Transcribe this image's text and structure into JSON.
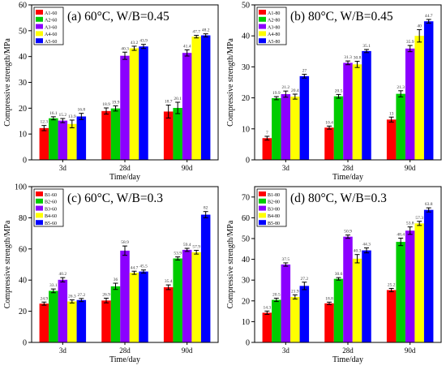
{
  "colors": [
    "#ff0000",
    "#00cc00",
    "#8b00ff",
    "#ffff00",
    "#0000ff"
  ],
  "chart_data": [
    {
      "type": "bar",
      "title": "(a) 60°C, W/B=0.45",
      "xlabel": "Time/day",
      "ylabel": "Compressive strength/MPa",
      "ylim": [
        0,
        60
      ],
      "yticks": [
        0,
        10,
        20,
        30,
        40,
        50,
        60
      ],
      "categories": [
        "3d",
        "28d",
        "90d"
      ],
      "legend_position": "top-left",
      "series": [
        {
          "name": "A1-60",
          "values": [
            12.3,
            18.9,
            18.7
          ],
          "labels": [
            "12.3",
            "18.9",
            "18.7"
          ],
          "errors": [
            1.0,
            1.2,
            2.5
          ]
        },
        {
          "name": "A2-60",
          "values": [
            16.1,
            19.9,
            20.1
          ],
          "labels": [
            "16.1",
            "19.9",
            "20.1"
          ],
          "errors": [
            0.6,
            1.0,
            2.2
          ]
        },
        {
          "name": "A3-60",
          "values": [
            15.2,
            40.3,
            41.4
          ],
          "labels": [
            "15.2",
            "40.3",
            "41.4"
          ],
          "errors": [
            0.8,
            1.4,
            1.2
          ]
        },
        {
          "name": "A4-60",
          "values": [
            13.9,
            43.2,
            47.7
          ],
          "labels": [
            "13.9",
            "43.2",
            "47.7"
          ],
          "errors": [
            1.5,
            0.8,
            0.5
          ]
        },
        {
          "name": "A5-60",
          "values": [
            16.8,
            43.9,
            48.2
          ],
          "labels": [
            "16.8",
            "43.9",
            "48.2"
          ],
          "errors": [
            1.2,
            0.8,
            0.6
          ]
        }
      ]
    },
    {
      "type": "bar",
      "title": "(b) 80°C, W/B=0.45",
      "xlabel": "Time/day",
      "ylabel": "Compressive strength/MPa",
      "ylim": [
        0,
        50
      ],
      "yticks": [
        0,
        10,
        20,
        30,
        40,
        50
      ],
      "categories": [
        "3d",
        "28d",
        "90d"
      ],
      "legend_position": "top-left",
      "series": [
        {
          "name": "A1-80",
          "values": [
            7,
            10.4,
            13
          ],
          "labels": [
            "7",
            "10.4",
            "13"
          ],
          "errors": [
            0.6,
            0.5,
            0.8
          ]
        },
        {
          "name": "A2-80",
          "values": [
            19.9,
            20.5,
            21.3
          ],
          "labels": [
            "19.9",
            "20.5",
            "21.3"
          ],
          "errors": [
            0.5,
            0.6,
            1.0
          ]
        },
        {
          "name": "A3-80",
          "values": [
            21.2,
            31.3,
            35.9
          ],
          "labels": [
            "21.2",
            "31.3",
            "35.9"
          ],
          "errors": [
            1.0,
            0.6,
            1.0
          ]
        },
        {
          "name": "A4-80",
          "values": [
            20.4,
            30.8,
            40
          ],
          "labels": [
            "20.4",
            "30.8",
            "40"
          ],
          "errors": [
            0.8,
            1.0,
            2.0
          ]
        },
        {
          "name": "A5-80",
          "values": [
            27,
            35.1,
            44.7
          ],
          "labels": [
            "27",
            "35.1",
            "44.7"
          ],
          "errors": [
            0.6,
            0.5,
            0.6
          ]
        }
      ]
    },
    {
      "type": "bar",
      "title": "(c) 60°C, W/B=0.3",
      "xlabel": "Time/day",
      "ylabel": "Compressive strength/MPa",
      "ylim": [
        0,
        100
      ],
      "yticks": [
        0,
        20,
        40,
        60,
        80,
        100
      ],
      "categories": [
        "3d",
        "28d",
        "90d"
      ],
      "legend_position": "top-left",
      "series": [
        {
          "name": "B1-60",
          "values": [
            24.9,
            26.9,
            35.4
          ],
          "labels": [
            "24.9",
            "26.9",
            "35.4"
          ],
          "errors": [
            1.0,
            1.5,
            1.5
          ]
        },
        {
          "name": "B2-60",
          "values": [
            33.1,
            36,
            53.9
          ],
          "labels": [
            "33.1",
            "36",
            "53.9"
          ],
          "errors": [
            1.2,
            2.0,
            1.0
          ]
        },
        {
          "name": "B3-60",
          "values": [
            40.2,
            58.9,
            59.4
          ],
          "labels": [
            "40.2",
            "58.9",
            "59.4"
          ],
          "errors": [
            1.4,
            3.0,
            1.0
          ]
        },
        {
          "name": "B4-60",
          "values": [
            26.3,
            44.7,
            57.9
          ],
          "labels": [
            "26.3",
            "44.7",
            "57.9"
          ],
          "errors": [
            1.0,
            1.0,
            1.2
          ]
        },
        {
          "name": "B5-60",
          "values": [
            27.2,
            45.5,
            82
          ],
          "labels": [
            "27.2",
            "45.5",
            "82"
          ],
          "errors": [
            1.0,
            1.0,
            2.0
          ]
        }
      ]
    },
    {
      "type": "bar",
      "title": "(d) 80°C, W/B=0.3",
      "xlabel": "Time/day",
      "ylabel": "Compressive strength/MPa",
      "ylim": [
        0,
        75
      ],
      "yticks": [
        0,
        10,
        20,
        30,
        40,
        50,
        60,
        70
      ],
      "categories": [
        "3d",
        "28d",
        "90d"
      ],
      "legend_position": "top-left",
      "series": [
        {
          "name": "B1-80",
          "values": [
            14.3,
            18.8,
            25.2
          ],
          "labels": [
            "14.3",
            "18.8",
            "25.2"
          ],
          "errors": [
            0.8,
            0.6,
            0.8
          ]
        },
        {
          "name": "B2-80",
          "values": [
            20.5,
            30.6,
            48.4
          ],
          "labels": [
            "20.5",
            "30.6",
            "48.4"
          ],
          "errors": [
            0.8,
            0.6,
            1.8
          ]
        },
        {
          "name": "B3-80",
          "values": [
            37.5,
            50.9,
            53.8
          ],
          "labels": [
            "37.5",
            "50.9",
            "53.8"
          ],
          "errors": [
            0.8,
            0.8,
            1.8
          ]
        },
        {
          "name": "B4-80",
          "values": [
            21.9,
            40.3,
            57.3
          ],
          "labels": [
            "21.9",
            "40.3",
            "57.3"
          ],
          "errors": [
            1.0,
            2.0,
            1.0
          ]
        },
        {
          "name": "B5-80",
          "values": [
            27.2,
            44.3,
            63.8
          ],
          "labels": [
            "27.2",
            "44.3",
            "63.8"
          ],
          "errors": [
            1.8,
            1.2,
            1.0
          ]
        }
      ]
    }
  ]
}
